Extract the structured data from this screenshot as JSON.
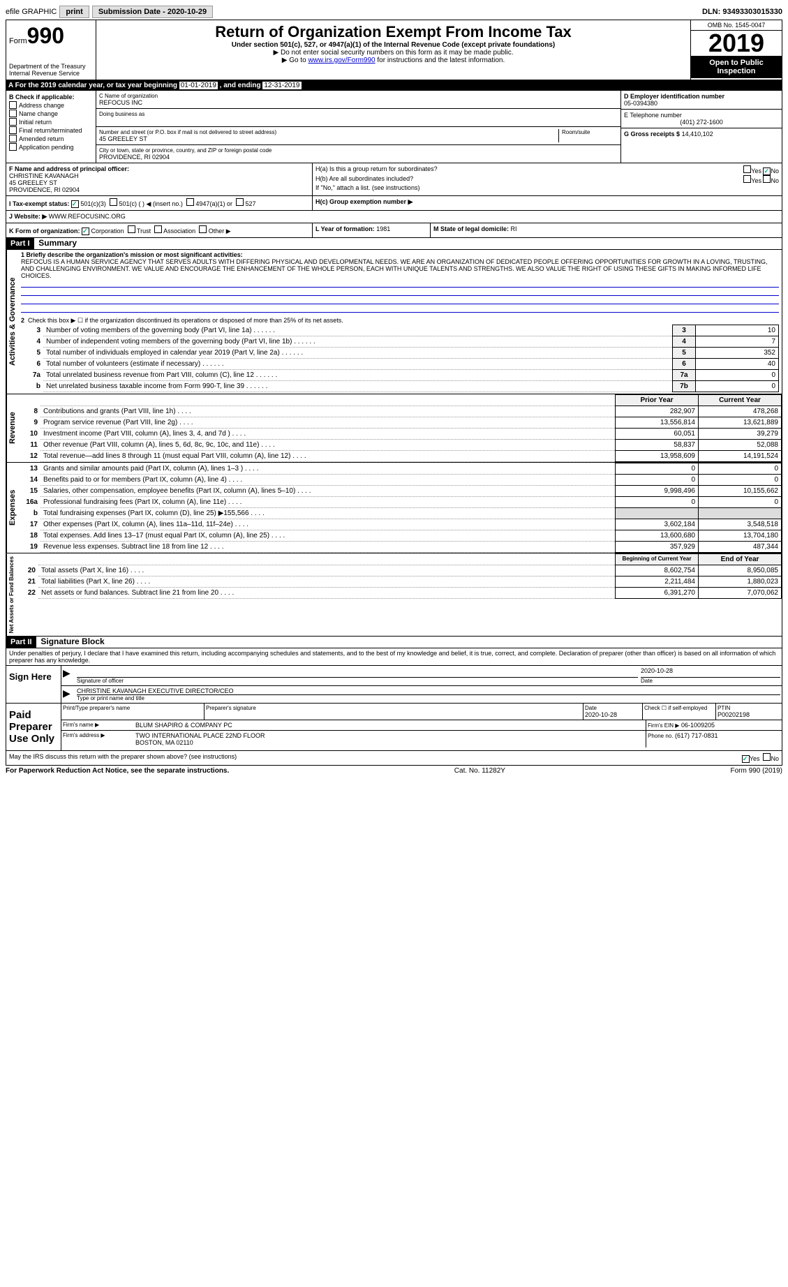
{
  "topbar": {
    "efile_label": "efile GRAPHIC",
    "print_btn": "print",
    "submission_label": "Submission Date - 2020-10-29",
    "dln": "DLN: 93493303015330"
  },
  "header": {
    "form_label": "Form",
    "form_num": "990",
    "dept": "Department of the Treasury\nInternal Revenue Service",
    "title": "Return of Organization Exempt From Income Tax",
    "subtitle": "Under section 501(c), 527, or 4947(a)(1) of the Internal Revenue Code (except private foundations)",
    "note1": "▶ Do not enter social security numbers on this form as it may be made public.",
    "note2_pre": "▶ Go to ",
    "note2_link": "www.irs.gov/Form990",
    "note2_post": " for instructions and the latest information.",
    "omb": "OMB No. 1545-0047",
    "year": "2019",
    "open": "Open to Public Inspection"
  },
  "period": {
    "label_a": "A For the 2019 calendar year, or tax year beginning ",
    "begin": "01-01-2019",
    "mid": " , and ending ",
    "end": "12-31-2019"
  },
  "section_b": {
    "header": "B Check if applicable:",
    "items": [
      "Address change",
      "Name change",
      "Initial return",
      "Final return/terminated",
      "Amended return",
      "Application pending"
    ]
  },
  "section_c": {
    "name_label": "C Name of organization",
    "name": "REFOCUS INC",
    "dba_label": "Doing business as",
    "addr_label": "Number and street (or P.O. box if mail is not delivered to street address)",
    "room_label": "Room/suite",
    "addr": "45 GREELEY ST",
    "city_label": "City or town, state or province, country, and ZIP or foreign postal code",
    "city": "PROVIDENCE, RI  02904"
  },
  "section_d": {
    "label": "D Employer identification number",
    "value": "05-0394380"
  },
  "section_e": {
    "label": "E Telephone number",
    "value": "(401) 272-1600"
  },
  "section_g": {
    "label": "G Gross receipts $",
    "value": "14,410,102"
  },
  "section_f": {
    "label": "F Name and address of principal officer:",
    "name": "CHRISTINE KAVANAGH",
    "addr1": "45 GREELEY ST",
    "addr2": "PROVIDENCE, RI  02904"
  },
  "section_h": {
    "ha_label": "H(a)  Is this a group return for subordinates?",
    "hb_label": "H(b)  Are all subordinates included?",
    "hb_note": "If \"No,\" attach a list. (see instructions)",
    "hc_label": "H(c)  Group exemption number ▶",
    "yes": "Yes",
    "no": "No"
  },
  "section_i": {
    "label": "I  Tax-exempt status:",
    "opts": [
      "501(c)(3)",
      "501(c) (   ) ◀ (insert no.)",
      "4947(a)(1) or",
      "527"
    ]
  },
  "section_j": {
    "label": "J  Website: ▶",
    "value": "WWW.REFOCUSINC.ORG"
  },
  "section_k": {
    "label": "K Form of organization:",
    "opts": [
      "Corporation",
      "Trust",
      "Association",
      "Other ▶"
    ]
  },
  "section_l": {
    "label": "L Year of formation:",
    "value": "1981"
  },
  "section_m": {
    "label": "M State of legal domicile:",
    "value": "RI"
  },
  "part1": {
    "header": "Part I",
    "title": "Summary",
    "line1_label": "1  Briefly describe the organization's mission or most significant activities:",
    "mission": "REFOCUS IS A HUMAN SERVICE AGENCY THAT SERVES ADULTS WITH DIFFERING PHYSICAL AND DEVELOPMENTAL NEEDS. WE ARE AN ORGANIZATION OF DEDICATED PEOPLE OFFERING OPPORTUNITIES FOR GROWTH IN A LOVING, TRUSTING, AND CHALLENGING ENVIRONMENT. WE VALUE AND ENCOURAGE THE ENHANCEMENT OF THE WHOLE PERSON, EACH WITH UNIQUE TALENTS AND STRENGTHS. WE ALSO VALUE THE RIGHT OF USING THESE GIFTS IN MAKING INFORMED LIFE CHOICES.",
    "line2": "Check this box ▶ ☐ if the organization discontinued its operations or disposed of more than 25% of its net assets.",
    "governance_label": "Activities & Governance",
    "revenue_label": "Revenue",
    "expenses_label": "Expenses",
    "netassets_label": "Net Assets or Fund Balances",
    "prior_year": "Prior Year",
    "current_year": "Current Year",
    "begin_year": "Beginning of Current Year",
    "end_year": "End of Year",
    "rows_gov": [
      {
        "n": "3",
        "d": "Number of voting members of the governing body (Part VI, line 1a)",
        "r": "3",
        "v": "10"
      },
      {
        "n": "4",
        "d": "Number of independent voting members of the governing body (Part VI, line 1b)",
        "r": "4",
        "v": "7"
      },
      {
        "n": "5",
        "d": "Total number of individuals employed in calendar year 2019 (Part V, line 2a)",
        "r": "5",
        "v": "352"
      },
      {
        "n": "6",
        "d": "Total number of volunteers (estimate if necessary)",
        "r": "6",
        "v": "40"
      },
      {
        "n": "7a",
        "d": "Total unrelated business revenue from Part VIII, column (C), line 12",
        "r": "7a",
        "v": "0"
      },
      {
        "n": "b",
        "d": "Net unrelated business taxable income from Form 990-T, line 39",
        "r": "7b",
        "v": "0"
      }
    ],
    "rows_rev": [
      {
        "n": "8",
        "d": "Contributions and grants (Part VIII, line 1h)",
        "p": "282,907",
        "c": "478,268"
      },
      {
        "n": "9",
        "d": "Program service revenue (Part VIII, line 2g)",
        "p": "13,556,814",
        "c": "13,621,889"
      },
      {
        "n": "10",
        "d": "Investment income (Part VIII, column (A), lines 3, 4, and 7d )",
        "p": "60,051",
        "c": "39,279"
      },
      {
        "n": "11",
        "d": "Other revenue (Part VIII, column (A), lines 5, 6d, 8c, 9c, 10c, and 11e)",
        "p": "58,837",
        "c": "52,088"
      },
      {
        "n": "12",
        "d": "Total revenue—add lines 8 through 11 (must equal Part VIII, column (A), line 12)",
        "p": "13,958,609",
        "c": "14,191,524"
      }
    ],
    "rows_exp": [
      {
        "n": "13",
        "d": "Grants and similar amounts paid (Part IX, column (A), lines 1–3 )",
        "p": "0",
        "c": "0"
      },
      {
        "n": "14",
        "d": "Benefits paid to or for members (Part IX, column (A), line 4)",
        "p": "0",
        "c": "0"
      },
      {
        "n": "15",
        "d": "Salaries, other compensation, employee benefits (Part IX, column (A), lines 5–10)",
        "p": "9,998,496",
        "c": "10,155,662"
      },
      {
        "n": "16a",
        "d": "Professional fundraising fees (Part IX, column (A), line 11e)",
        "p": "0",
        "c": "0"
      },
      {
        "n": "b",
        "d": "Total fundraising expenses (Part IX, column (D), line 25) ▶155,566",
        "p": "",
        "c": ""
      },
      {
        "n": "17",
        "d": "Other expenses (Part IX, column (A), lines 11a–11d, 11f–24e)",
        "p": "3,602,184",
        "c": "3,548,518"
      },
      {
        "n": "18",
        "d": "Total expenses. Add lines 13–17 (must equal Part IX, column (A), line 25)",
        "p": "13,600,680",
        "c": "13,704,180"
      },
      {
        "n": "19",
        "d": "Revenue less expenses. Subtract line 18 from line 12",
        "p": "357,929",
        "c": "487,344"
      }
    ],
    "rows_net": [
      {
        "n": "20",
        "d": "Total assets (Part X, line 16)",
        "p": "8,602,754",
        "c": "8,950,085"
      },
      {
        "n": "21",
        "d": "Total liabilities (Part X, line 26)",
        "p": "2,211,484",
        "c": "1,880,023"
      },
      {
        "n": "22",
        "d": "Net assets or fund balances. Subtract line 21 from line 20",
        "p": "6,391,270",
        "c": "7,070,062"
      }
    ]
  },
  "part2": {
    "header": "Part II",
    "title": "Signature Block",
    "perjury": "Under penalties of perjury, I declare that I have examined this return, including accompanying schedules and statements, and to the best of my knowledge and belief, it is true, correct, and complete. Declaration of preparer (other than officer) is based on all information of which preparer has any knowledge.",
    "sign_here": "Sign Here",
    "sig_officer": "Signature of officer",
    "sig_date": "2020-10-28",
    "date_label": "Date",
    "officer_name": "CHRISTINE KAVANAGH  EXECUTIVE DIRECTOR/CEO",
    "type_label": "Type or print name and title",
    "paid_prep": "Paid Preparer Use Only",
    "prep_name_label": "Print/Type preparer's name",
    "prep_sig_label": "Preparer's signature",
    "prep_date": "2020-10-28",
    "check_if": "Check ☐ if self-employed",
    "ptin_label": "PTIN",
    "ptin": "P00202198",
    "firm_name_label": "Firm's name      ▶",
    "firm_name": "BLUM SHAPIRO & COMPANY PC",
    "firm_ein_label": "Firm's EIN ▶",
    "firm_ein": "06-1009205",
    "firm_addr_label": "Firm's address ▶",
    "firm_addr1": "TWO INTERNATIONAL PLACE 22ND FLOOR",
    "firm_addr2": "BOSTON, MA  02110",
    "phone_label": "Phone no.",
    "phone": "(617) 717-0831",
    "discuss": "May the IRS discuss this return with the preparer shown above? (see instructions)"
  },
  "footer": {
    "left": "For Paperwork Reduction Act Notice, see the separate instructions.",
    "mid": "Cat. No. 11282Y",
    "right": "Form 990 (2019)"
  }
}
